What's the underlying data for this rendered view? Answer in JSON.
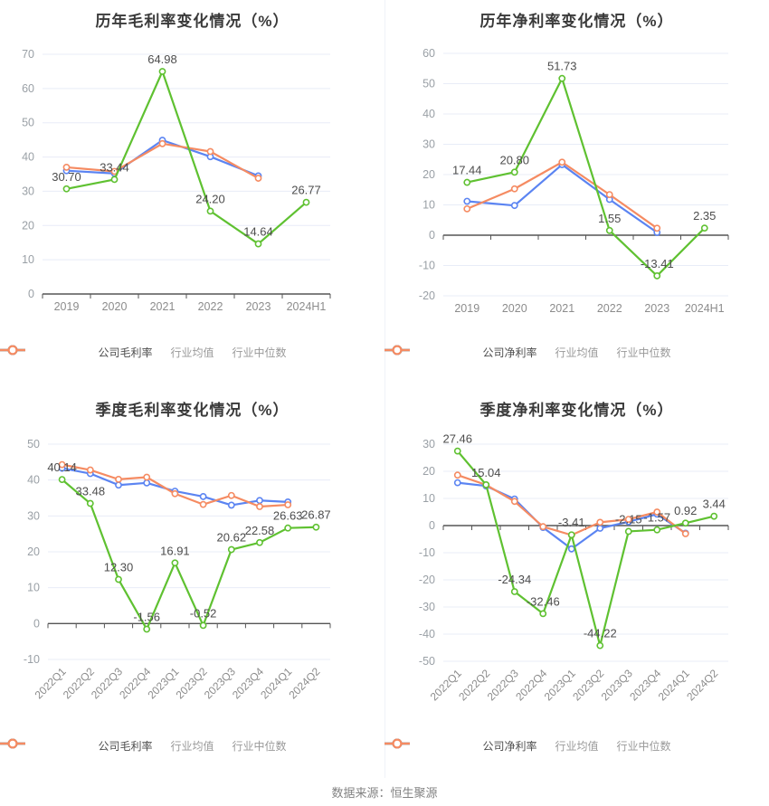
{
  "footer": {
    "note": "数据来源：恒生聚源"
  },
  "colors": {
    "company_green": "#5fc131",
    "industry_avg_blue": "#5b84f2",
    "industry_median_orange": "#f58b62",
    "grid_line": "#e8ecf7",
    "axis_line": "#555555",
    "y_tick_label": "#9aa0a6",
    "x_tick_label": "#8c8c8c",
    "data_label": "#4d4d4d",
    "title": "#3a3a3a",
    "legend_text": "#999999"
  },
  "chart_data": [
    {
      "type": "line",
      "title": "历年毛利率变化情况（%）",
      "categories": [
        "2019",
        "2020",
        "2021",
        "2022",
        "2023",
        "2024H1"
      ],
      "series": [
        {
          "name": "公司毛利率",
          "slug": "company-gross-margin",
          "color_key": "company_green",
          "values": [
            30.7,
            33.44,
            64.98,
            24.2,
            14.64,
            26.77
          ],
          "labels": [
            "30.70",
            "33.44",
            "64.98",
            "24.20",
            "14.64",
            "26.77"
          ]
        },
        {
          "name": "行业均值",
          "slug": "industry-average",
          "color_key": "industry_avg_blue",
          "values": [
            36.0,
            35.2,
            44.9,
            40.1,
            34.5,
            null
          ]
        },
        {
          "name": "行业中位数",
          "slug": "industry-median",
          "color_key": "industry_median_orange",
          "values": [
            37.0,
            35.8,
            43.9,
            41.6,
            33.8,
            null
          ]
        }
      ],
      "ylim": [
        0,
        70
      ],
      "ystep": 10,
      "ytick_labels": [
        "70",
        "60",
        "50",
        "40",
        "30",
        "20",
        "10",
        "0"
      ],
      "rotate_x_labels": false,
      "grid": true,
      "legend_position": "bottom"
    },
    {
      "type": "line",
      "title": "历年净利率变化情况（%）",
      "categories": [
        "2019",
        "2020",
        "2021",
        "2022",
        "2023",
        "2024H1"
      ],
      "series": [
        {
          "name": "公司净利率",
          "slug": "company-net-margin",
          "color_key": "company_green",
          "values": [
            17.44,
            20.8,
            51.73,
            1.55,
            -13.41,
            2.35
          ],
          "labels": [
            "17.44",
            "20.80",
            "51.73",
            "1.55",
            "-13.41",
            "2.35"
          ]
        },
        {
          "name": "行业均值",
          "slug": "industry-average",
          "color_key": "industry_avg_blue",
          "values": [
            11.2,
            9.8,
            23.3,
            11.8,
            0.9,
            null
          ]
        },
        {
          "name": "行业中位数",
          "slug": "industry-median",
          "color_key": "industry_median_orange",
          "values": [
            8.7,
            15.3,
            24.1,
            13.4,
            2.3,
            null
          ]
        }
      ],
      "ylim": [
        -20,
        60
      ],
      "ystep": 10,
      "ytick_labels": [
        "60",
        "50",
        "40",
        "30",
        "20",
        "10",
        "0",
        "-10",
        "-20"
      ],
      "rotate_x_labels": false,
      "grid": true,
      "legend_position": "bottom"
    },
    {
      "type": "line",
      "title": "季度毛利率变化情况（%）",
      "categories": [
        "2022Q1",
        "2022Q2",
        "2022Q3",
        "2022Q4",
        "2023Q1",
        "2023Q2",
        "2023Q3",
        "2023Q4",
        "2024Q1",
        "2024Q2"
      ],
      "series": [
        {
          "name": "公司毛利率",
          "slug": "company-gross-margin",
          "color_key": "company_green",
          "values": [
            40.14,
            33.48,
            12.3,
            -1.56,
            16.91,
            -0.52,
            20.62,
            22.58,
            26.63,
            26.87
          ],
          "labels": [
            "40.14",
            "33.48",
            "12.30",
            "-1.56",
            "16.91",
            "-0.52",
            "20.62",
            "22.58",
            "26.63",
            "26.87"
          ]
        },
        {
          "name": "行业均值",
          "slug": "industry-average",
          "color_key": "industry_avg_blue",
          "values": [
            43.3,
            41.8,
            38.6,
            39.2,
            36.9,
            35.4,
            33.0,
            34.3,
            33.9,
            null
          ]
        },
        {
          "name": "行业中位数",
          "slug": "industry-median",
          "color_key": "industry_median_orange",
          "values": [
            44.3,
            42.8,
            40.2,
            40.8,
            36.2,
            33.2,
            35.7,
            32.6,
            33.1,
            null
          ]
        }
      ],
      "ylim": [
        -10,
        50
      ],
      "ystep": 10,
      "ytick_labels": [
        "50",
        "40",
        "30",
        "20",
        "10",
        "0",
        "-10"
      ],
      "rotate_x_labels": true,
      "grid": true,
      "legend_position": "bottom"
    },
    {
      "type": "line",
      "title": "季度净利率变化情况（%）",
      "categories": [
        "2022Q1",
        "2022Q2",
        "2022Q3",
        "2022Q4",
        "2023Q1",
        "2023Q2",
        "2023Q3",
        "2023Q4",
        "2024Q1",
        "2024Q2"
      ],
      "series": [
        {
          "name": "公司净利率",
          "slug": "company-net-margin",
          "color_key": "company_green",
          "values": [
            27.46,
            15.04,
            -24.34,
            -32.46,
            -3.41,
            -44.22,
            -2.15,
            -1.57,
            0.92,
            3.44
          ],
          "labels": [
            "27.46",
            "15.04",
            "-24.34",
            "-32.46",
            "-3.41",
            "-44.22",
            "-2.15",
            "-1.57",
            "0.92",
            "3.44"
          ]
        },
        {
          "name": "行业均值",
          "slug": "industry-average",
          "color_key": "industry_avg_blue",
          "values": [
            15.8,
            14.6,
            9.8,
            -0.7,
            -8.6,
            -1.0,
            1.4,
            4.2,
            -2.8,
            null
          ]
        },
        {
          "name": "行业中位数",
          "slug": "industry-median",
          "color_key": "industry_median_orange",
          "values": [
            18.6,
            15.0,
            8.9,
            -0.4,
            -3.5,
            1.2,
            2.3,
            5.0,
            -3.0,
            null
          ]
        }
      ],
      "ylim": [
        -50,
        30
      ],
      "ystep": 10,
      "ytick_labels": [
        "30",
        "20",
        "10",
        "0",
        "-10",
        "-20",
        "-30",
        "-40",
        "-50"
      ],
      "rotate_x_labels": true,
      "grid": true,
      "legend_position": "bottom"
    }
  ]
}
